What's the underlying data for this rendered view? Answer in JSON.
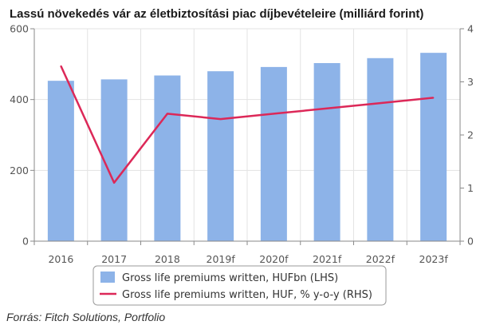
{
  "chart_data": {
    "type": "bar",
    "title": "Lassú növekedés vár az életbiztosítási piac díjbevételeire (milliárd forint)",
    "categories": [
      "2016",
      "2017",
      "2018",
      "2019f",
      "2020f",
      "2021f",
      "2022f",
      "2023f"
    ],
    "series": [
      {
        "name": "Gross life premiums written, HUFbn (LHS)",
        "type": "bar",
        "axis": "left",
        "color": "#8db3e8",
        "values": [
          453,
          457,
          468,
          480,
          492,
          503,
          517,
          532
        ]
      },
      {
        "name": "Gross life premiums written, HUF, % y-o-y (RHS)",
        "type": "line",
        "axis": "right",
        "color": "#dc2858",
        "values": [
          3.3,
          1.1,
          2.4,
          2.3,
          2.4,
          2.5,
          2.6,
          2.7
        ]
      }
    ],
    "y_left": {
      "min": 0,
      "max": 600,
      "ticks": [
        0,
        200,
        400,
        600
      ]
    },
    "y_right": {
      "min": 0,
      "max": 4,
      "ticks": [
        0,
        1,
        2,
        3,
        4
      ]
    },
    "grid": true,
    "legend_position": "bottom"
  },
  "source": "Forrás: Fitch Solutions, Portfolio"
}
